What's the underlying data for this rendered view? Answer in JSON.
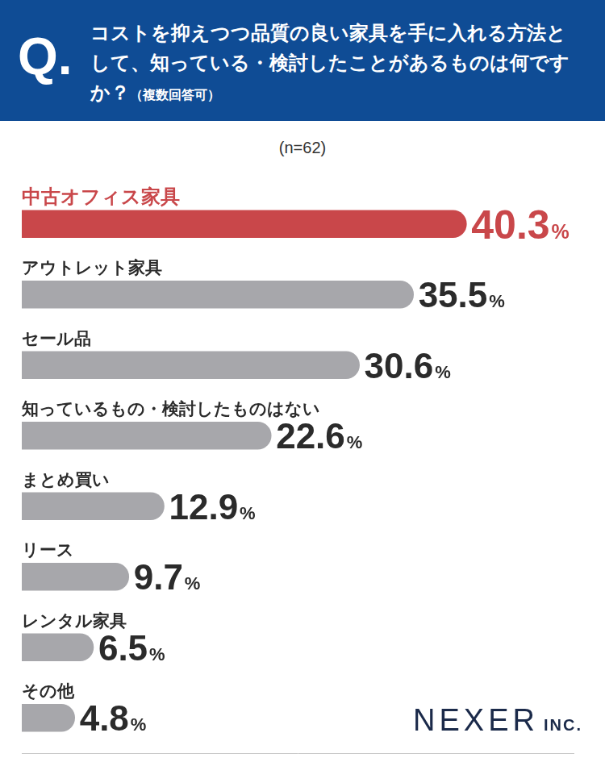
{
  "chart_data": {
    "type": "bar",
    "orientation": "horizontal",
    "question_mark": "Q.",
    "title": "コストを抑えつつ品質の良い家具を手に入れる方法として、知っている・検討したことがあるものは何ですか？",
    "subtitle": "（複数回答可）",
    "note": "(n=62)",
    "source": "NEXER INC.",
    "categories": [
      "中古オフィス家具",
      "アウトレット家具",
      "セール品",
      "知っているもの・検討したものはない",
      "まとめ買い",
      "リース",
      "レンタル家具",
      "その他"
    ],
    "values": [
      40.3,
      35.5,
      30.6,
      22.6,
      12.9,
      9.7,
      6.5,
      4.8
    ],
    "value_labels": [
      "40.3%",
      "35.5%",
      "30.6%",
      "22.6%",
      "12.9%",
      "9.7%",
      "6.5%",
      "4.8%"
    ],
    "colors": [
      "#c9474a",
      "#a7a7ab",
      "#a7a7ab",
      "#a7a7ab",
      "#a7a7ab",
      "#a7a7ab",
      "#a7a7ab",
      "#a7a7ab"
    ],
    "xlim": [
      0,
      50
    ],
    "xticks": [],
    "tick_labels": "y",
    "grid": false,
    "data_labels": true
  }
}
